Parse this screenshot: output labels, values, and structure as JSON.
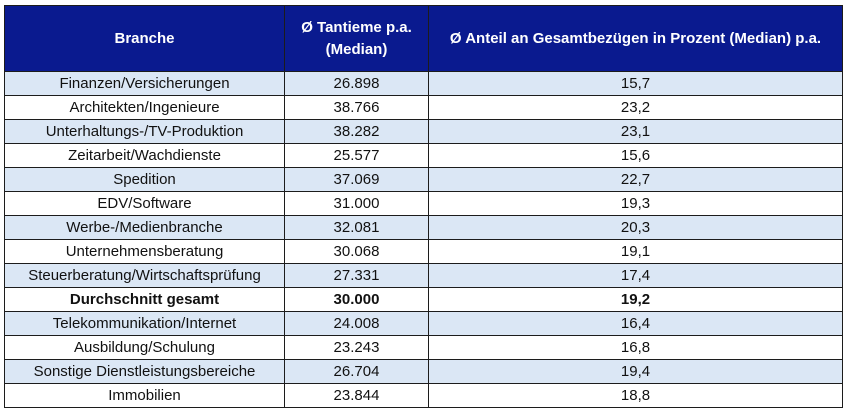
{
  "chart_data": {
    "type": "table",
    "columns": [
      "Branche",
      "Ø Tantieme p.a. (Median)",
      "Ø Anteil an Gesamtbezügen in Prozent (Median) p.a."
    ],
    "rows": [
      {
        "branche": "Finanzen/Versicherungen",
        "tantieme": "26.898",
        "anteil": "15,7"
      },
      {
        "branche": "Architekten/Ingenieure",
        "tantieme": "38.766",
        "anteil": "23,2"
      },
      {
        "branche": "Unterhaltungs-/TV-Produktion",
        "tantieme": "38.282",
        "anteil": "23,1"
      },
      {
        "branche": "Zeitarbeit/Wachdienste",
        "tantieme": "25.577",
        "anteil": "15,6"
      },
      {
        "branche": "Spedition",
        "tantieme": "37.069",
        "anteil": "22,7"
      },
      {
        "branche": "EDV/Software",
        "tantieme": "31.000",
        "anteil": "19,3"
      },
      {
        "branche": "Werbe-/Medienbranche",
        "tantieme": "32.081",
        "anteil": "20,3"
      },
      {
        "branche": "Unternehmensberatung",
        "tantieme": "30.068",
        "anteil": "19,1"
      },
      {
        "branche": "Steuerberatung/Wirtschaftsprüfung",
        "tantieme": "27.331",
        "anteil": "17,4"
      },
      {
        "branche": "Durchschnitt gesamt",
        "tantieme": "30.000",
        "anteil": "19,2",
        "is_total": true
      },
      {
        "branche": "Telekommunikation/Internet",
        "tantieme": "24.008",
        "anteil": "16,4"
      },
      {
        "branche": "Ausbildung/Schulung",
        "tantieme": "23.243",
        "anteil": "16,8"
      },
      {
        "branche": "Sonstige Dienstleistungsbereiche",
        "tantieme": "26.704",
        "anteil": "19,4"
      },
      {
        "branche": "Immobilien",
        "tantieme": "23.844",
        "anteil": "18,8"
      }
    ]
  },
  "colors": {
    "header_bg": "#0a1a8f",
    "header_text": "#ffffff",
    "row_shade": "#dbe7f5",
    "row_plain": "#ffffff",
    "border": "#1c1c1c"
  }
}
